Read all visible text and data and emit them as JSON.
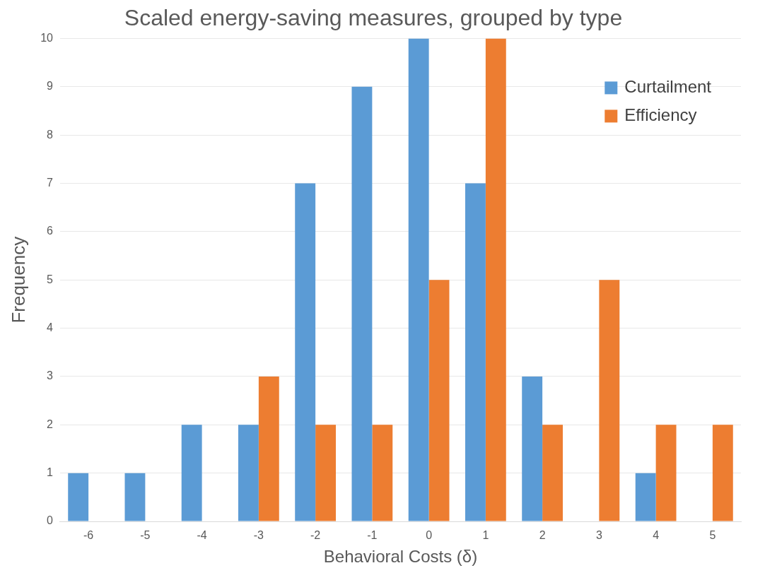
{
  "chart_data": {
    "type": "bar",
    "title": "Scaled energy-saving measures, grouped by type",
    "xlabel": "Behavioral Costs (δ)",
    "ylabel": "Frequency",
    "categories": [
      "-6",
      "-5",
      "-4",
      "-3",
      "-2",
      "-1",
      "0",
      "1",
      "2",
      "3",
      "4",
      "5"
    ],
    "series": [
      {
        "name": "Curtailment",
        "color": "#5b9bd5",
        "values": [
          1,
          1,
          2,
          2,
          7,
          9,
          10,
          7,
          3,
          0,
          1,
          0
        ]
      },
      {
        "name": "Efficiency",
        "color": "#ed7d31",
        "values": [
          0,
          0,
          0,
          3,
          2,
          2,
          5,
          10,
          2,
          5,
          2,
          2
        ]
      }
    ],
    "ylim": [
      0,
      10
    ],
    "yticks": [
      0,
      1,
      2,
      3,
      4,
      5,
      6,
      7,
      8,
      9,
      10
    ],
    "grid": "y",
    "legend": "top right"
  }
}
